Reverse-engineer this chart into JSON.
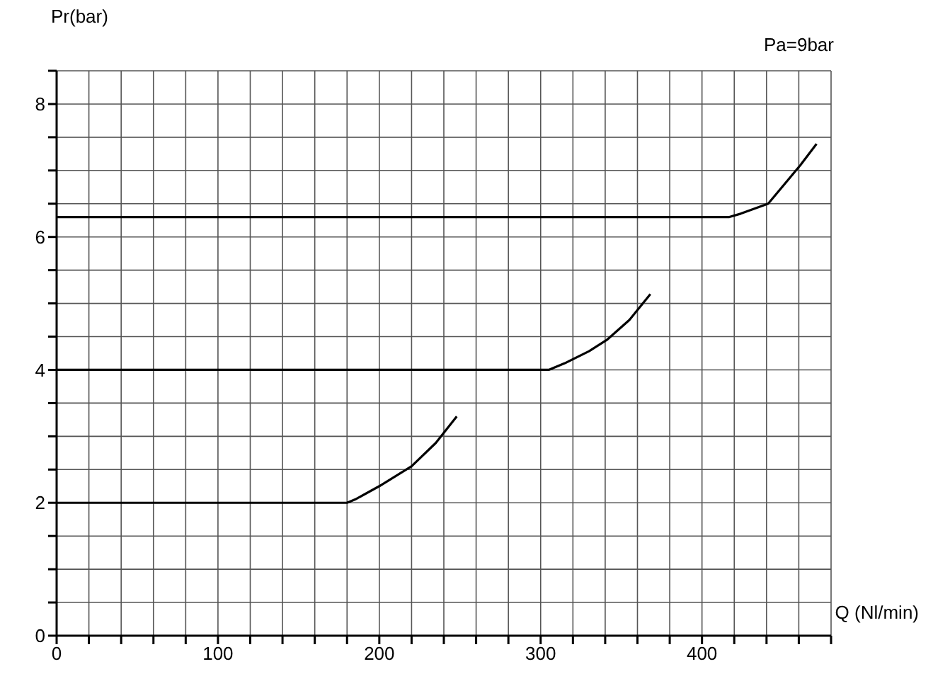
{
  "chart_data": {
    "type": "line",
    "xlabel": "Q (Nl/min)",
    "ylabel": "Pr(bar)",
    "annotations": [
      "Pa=9bar"
    ],
    "xlim": [
      0,
      480
    ],
    "ylim": [
      0,
      8.5
    ],
    "xticks": [
      0,
      {
        "value": 20,
        "label": null
      },
      {
        "value": 40,
        "label": null
      },
      {
        "value": 60,
        "label": null
      },
      {
        "value": 80,
        "label": null
      },
      100,
      {
        "value": 120,
        "label": null
      },
      {
        "value": 140,
        "label": null
      },
      {
        "value": 160,
        "label": null
      },
      {
        "value": 180,
        "label": null
      },
      200,
      {
        "value": 220,
        "label": null
      },
      {
        "value": 240,
        "label": null
      },
      {
        "value": 260,
        "label": null
      },
      {
        "value": 280,
        "label": null
      },
      300,
      {
        "value": 320,
        "label": null
      },
      {
        "value": 340,
        "label": null
      },
      {
        "value": 360,
        "label": null
      },
      {
        "value": 380,
        "label": null
      },
      400,
      {
        "value": 420,
        "label": null
      },
      {
        "value": 440,
        "label": null
      },
      {
        "value": 460,
        "label": null
      },
      {
        "value": 480,
        "label": null
      }
    ],
    "yticks": [
      0,
      {
        "value": 0.5,
        "label": null
      },
      {
        "value": 1,
        "label": null
      },
      {
        "value": 1.5,
        "label": null
      },
      2,
      {
        "value": 2.5,
        "label": null
      },
      {
        "value": 3,
        "label": null
      },
      {
        "value": 3.5,
        "label": null
      },
      4,
      {
        "value": 4.5,
        "label": null
      },
      {
        "value": 5,
        "label": null
      },
      {
        "value": 5.5,
        "label": null
      },
      6,
      {
        "value": 6.5,
        "label": null
      },
      {
        "value": 7,
        "label": null
      },
      {
        "value": 7.5,
        "label": null
      },
      8,
      {
        "value": 8.5,
        "label": null
      }
    ],
    "grid": true,
    "marker": "none",
    "line_style": "solid",
    "series": [
      {
        "color": "#000000",
        "x": [
          0,
          180,
          185,
          200,
          220,
          235,
          248
        ],
        "values": [
          2,
          2,
          2.05,
          2.25,
          2.55,
          2.9,
          3.3
        ]
      },
      {
        "color": "#000000",
        "x": [
          0,
          305,
          315,
          330,
          341,
          355,
          368
        ],
        "values": [
          4,
          4,
          4.1,
          4.28,
          4.45,
          4.75,
          5.14
        ]
      },
      {
        "color": "#000000",
        "x": [
          0,
          417,
          424,
          441,
          461,
          471
        ],
        "values": [
          6.3,
          6.3,
          6.35,
          6.5,
          7.08,
          7.4
        ]
      }
    ]
  }
}
